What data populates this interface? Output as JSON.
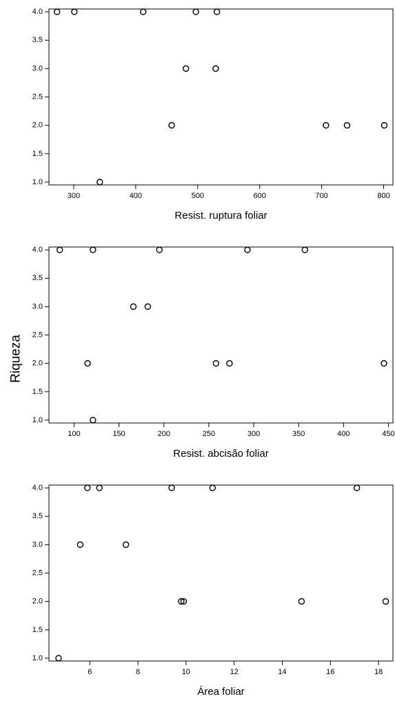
{
  "figure": {
    "shared_ylabel": "Riqueza"
  },
  "chart_data": [
    {
      "type": "scatter",
      "xlabel": "Resist. ruptura foliar",
      "ylabel": "Riqueza",
      "xlim": [
        260,
        815
      ],
      "ylim": [
        0.95,
        4.05
      ],
      "x_ticks": [
        300,
        400,
        500,
        600,
        700,
        800
      ],
      "y_ticks": [
        1.0,
        1.5,
        2.0,
        2.5,
        3.0,
        3.5,
        4.0
      ],
      "grid": false,
      "points": [
        {
          "x": 273,
          "y": 4
        },
        {
          "x": 301,
          "y": 4
        },
        {
          "x": 412,
          "y": 4
        },
        {
          "x": 497,
          "y": 4
        },
        {
          "x": 531,
          "y": 4
        },
        {
          "x": 481,
          "y": 3
        },
        {
          "x": 529,
          "y": 3
        },
        {
          "x": 458,
          "y": 2
        },
        {
          "x": 707,
          "y": 2
        },
        {
          "x": 741,
          "y": 2
        },
        {
          "x": 801,
          "y": 2
        },
        {
          "x": 342,
          "y": 1
        }
      ]
    },
    {
      "type": "scatter",
      "xlabel": "Resist. abcisão foliar",
      "ylabel": "Riqueza",
      "xlim": [
        72,
        455
      ],
      "ylim": [
        0.95,
        4.05
      ],
      "x_ticks": [
        100,
        150,
        200,
        250,
        300,
        350,
        400,
        450
      ],
      "y_ticks": [
        1.0,
        1.5,
        2.0,
        2.5,
        3.0,
        3.5,
        4.0
      ],
      "grid": false,
      "points": [
        {
          "x": 84,
          "y": 4
        },
        {
          "x": 121,
          "y": 4
        },
        {
          "x": 195,
          "y": 4
        },
        {
          "x": 293,
          "y": 4
        },
        {
          "x": 357,
          "y": 4
        },
        {
          "x": 166,
          "y": 3
        },
        {
          "x": 182,
          "y": 3
        },
        {
          "x": 115,
          "y": 2
        },
        {
          "x": 258,
          "y": 2
        },
        {
          "x": 273,
          "y": 2
        },
        {
          "x": 445,
          "y": 2
        },
        {
          "x": 121,
          "y": 1
        }
      ]
    },
    {
      "type": "scatter",
      "xlabel": "Área foliar",
      "ylabel": "Riqueza",
      "xlim": [
        4.3,
        18.6
      ],
      "ylim": [
        0.95,
        4.05
      ],
      "x_ticks": [
        6,
        8,
        10,
        12,
        14,
        16,
        18
      ],
      "y_ticks": [
        1.0,
        1.5,
        2.0,
        2.5,
        3.0,
        3.5,
        4.0
      ],
      "grid": false,
      "points": [
        {
          "x": 5.9,
          "y": 4
        },
        {
          "x": 6.4,
          "y": 4
        },
        {
          "x": 9.4,
          "y": 4
        },
        {
          "x": 11.1,
          "y": 4
        },
        {
          "x": 17.1,
          "y": 4
        },
        {
          "x": 5.6,
          "y": 3
        },
        {
          "x": 7.5,
          "y": 3
        },
        {
          "x": 9.8,
          "y": 2
        },
        {
          "x": 9.9,
          "y": 2
        },
        {
          "x": 14.8,
          "y": 2
        },
        {
          "x": 18.3,
          "y": 2
        },
        {
          "x": 4.7,
          "y": 1
        }
      ]
    }
  ]
}
